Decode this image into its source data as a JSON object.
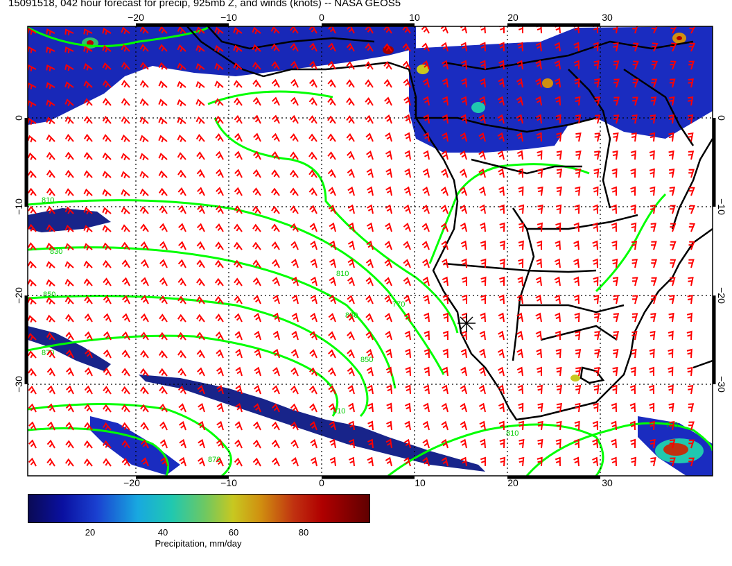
{
  "title": "15091518, 042 hour forecast for precip, 925mb Z, and winds (knots) -- NASA GEOS5",
  "map": {
    "lon_ticks": [
      "−20",
      "−10",
      "0",
      "10",
      "20",
      "30"
    ],
    "lat_ticks": [
      "0",
      "−10",
      "−20",
      "−30"
    ],
    "contour_labels": [
      "810",
      "830",
      "850",
      "870",
      "810",
      "830",
      "850",
      "870",
      "810",
      "770",
      "790",
      "810"
    ]
  },
  "colorbar": {
    "ticks": [
      "20",
      "40",
      "60",
      "80"
    ],
    "label": "Precipitation, mm/day"
  },
  "colors": {
    "winds": "#ff0000",
    "contours": "#00ff00",
    "coast": "#000000",
    "precip_low": "#0a10a0",
    "precip_high": "#8b0000"
  }
}
